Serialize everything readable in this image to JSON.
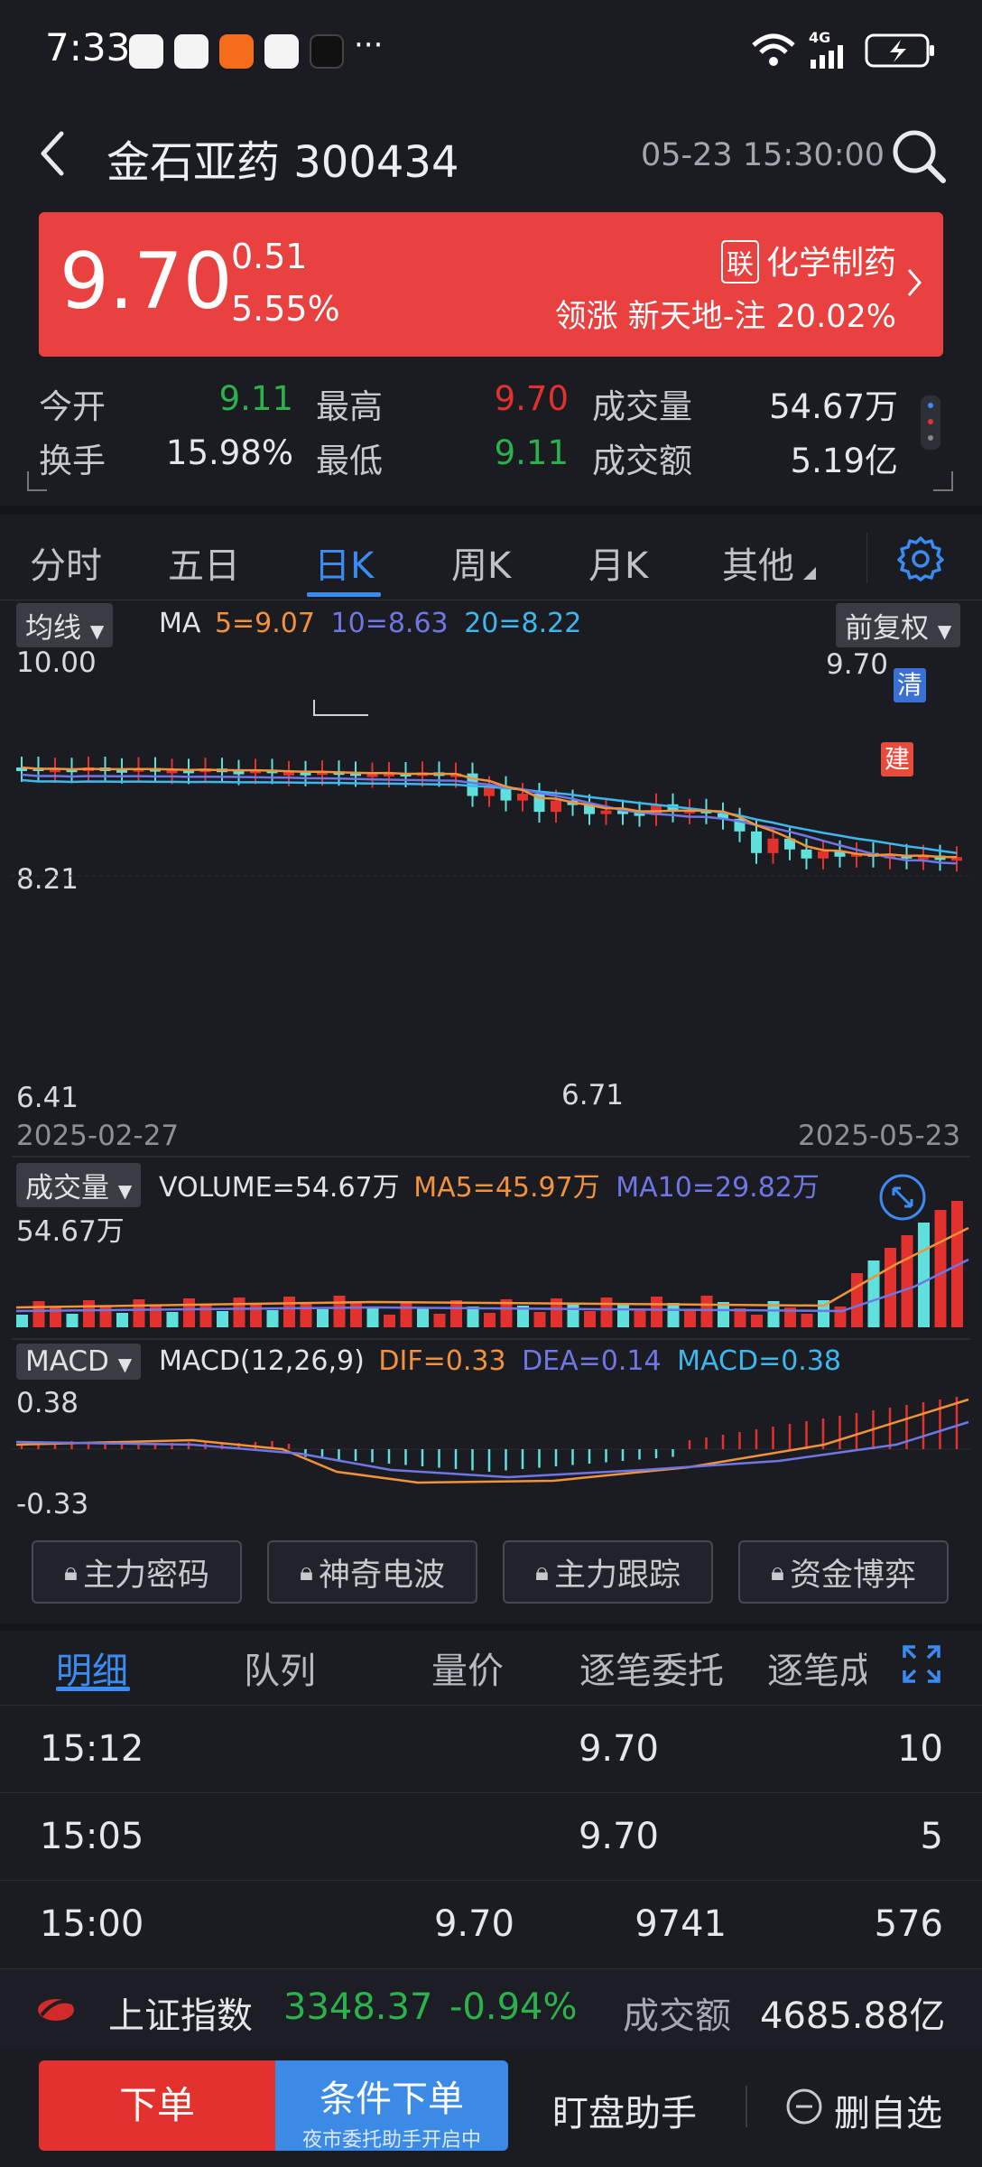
{
  "status_bar": {
    "time": "7:33",
    "more": "···",
    "network": "4G"
  },
  "header": {
    "title": "金石亚药 300434",
    "datetime": "05-23 15:30:00"
  },
  "price_card": {
    "price": "9.70",
    "change": "0.51",
    "change_pct": "5.55%",
    "lian_badge": "联",
    "sector": "化学制药",
    "lead_text": "领涨 新天地-注 20.02%"
  },
  "stats": {
    "open_label": "今开",
    "open": "9.11",
    "high_label": "最高",
    "high": "9.70",
    "volume_label": "成交量",
    "volume": "54.67万",
    "turnover_label": "换手",
    "turnover": "15.98%",
    "low_label": "最低",
    "low": "9.11",
    "amount_label": "成交额",
    "amount": "5.19亿"
  },
  "chart_tabs": [
    "分时",
    "五日",
    "日K",
    "周K",
    "月K",
    "其他"
  ],
  "kline": {
    "indicator": "均线",
    "ma_label": "MA",
    "ma5": "5=9.07",
    "ma10": "10=8.63",
    "ma20": "20=8.22",
    "adjust": "前复权",
    "y_top": "10.00",
    "y_mid": "8.21",
    "y_bot": "6.41",
    "max_label": "9.70",
    "min_label": "6.71",
    "date_start": "2025-02-27",
    "date_end": "2025-05-23",
    "tag_qing": "清",
    "tag_jian": "建"
  },
  "volume": {
    "indicator": "成交量",
    "vol": "VOLUME=54.67万",
    "ma5": "MA5=45.97万",
    "ma10": "MA10=29.82万",
    "y_top": "54.67万"
  },
  "macd": {
    "indicator": "MACD",
    "params": "MACD(12,26,9)",
    "dif": "DIF=0.33",
    "dea": "DEA=0.14",
    "macd": "MACD=0.38",
    "y_top": "0.38",
    "y_bot": "-0.33"
  },
  "locked_buttons": [
    "主力密码",
    "神奇电波",
    "主力跟踪",
    "资金博弈"
  ],
  "detail_tabs": [
    "明细",
    "队列",
    "量价",
    "逐笔委托",
    "逐笔成交"
  ],
  "trades": [
    {
      "time": "15:12",
      "price_mid": "",
      "price": "9.70",
      "qty": "10"
    },
    {
      "time": "15:05",
      "price_mid": "",
      "price": "9.70",
      "qty": "5"
    },
    {
      "time": "15:00",
      "price_mid": "9.70",
      "price": "9741",
      "qty": "576"
    }
  ],
  "index_bar": {
    "name": "上证指数",
    "value": "3348.37",
    "pct": "-0.94%",
    "amount_label": "成交额",
    "amount": "4685.88亿"
  },
  "bottom_bar": {
    "order": "下单",
    "cond_order": "条件下单",
    "cond_sub": "夜市委托助手开启中",
    "monitor": "盯盘助手",
    "remove": "删自选"
  },
  "colors": {
    "up": "#e3322d",
    "down": "#5fe0dc",
    "accent": "#3b8cf2",
    "ma5": "#f2923a",
    "ma10": "#6f76e6",
    "ma20": "#3cb8ee"
  }
}
